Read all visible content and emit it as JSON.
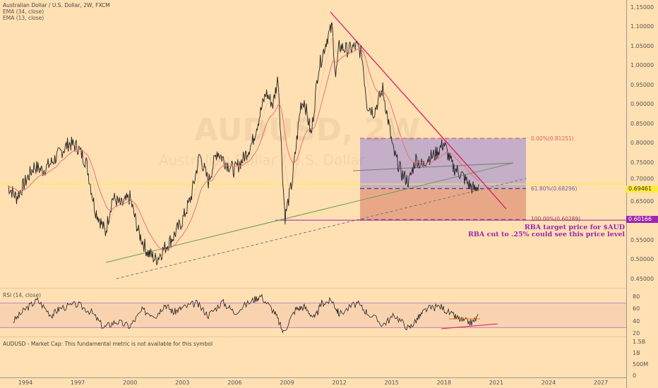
{
  "legend": {
    "title": "Australian Dollar / U.S. Dollar, 2W, FXCM",
    "ema1": "EMA (34, close)",
    "ema2": "EMA (13, close)"
  },
  "watermark": {
    "symbol": "AUDUSD, 2W",
    "name": "Australian Dollar / U.S. Dollar"
  },
  "rsi_label": "RSI (14, close)",
  "marketcap_label": "AUDUSD - Market Cap: This fundamental metric is not available for this symbol",
  "fib": {
    "top": "0.00%(0.81251)",
    "mid": "61.80%(0.68296)",
    "bottom": "100.00%(0.60289)"
  },
  "annotation": {
    "line1": "RBA target price for $AUD",
    "line2": "RBA cut to .25% could see this price level"
  },
  "tags": {
    "current": "0.69461",
    "target": "0.60166"
  },
  "colors": {
    "bg": "#ffe0b2",
    "candles": "#222222",
    "ema": "#e57373",
    "trend": "#d81b60",
    "fib_upper": "#c5aec8",
    "fib_lower": "#e8a888",
    "target": "#9c27b0",
    "current": "#ffeb3b"
  },
  "chart_data": {
    "type": "line",
    "title": "Australian Dollar / U.S. Dollar, 2W, FXCM",
    "x": [
      1993.0,
      1993.5,
      1994.5,
      1995,
      1995.5,
      1996.5,
      1997,
      1997.5,
      1998,
      1998.6,
      1999,
      1999.5,
      2000,
      2000.5,
      2001,
      2001.5,
      2002,
      2002.5,
      2003,
      2003.5,
      2004,
      2004.5,
      2005,
      2005.5,
      2006,
      2006.5,
      2007,
      2007.8,
      2008.2,
      2008.5,
      2008.8,
      2008.9,
      2009.3,
      2009.8,
      2010,
      2010.4,
      2010.8,
      2011,
      2011.3,
      2011.6,
      2011.8,
      2012,
      2012.5,
      2013,
      2013.3,
      2013.6,
      2014,
      2014.5,
      2014.8,
      2015.1,
      2015.6,
      2016,
      2016.4,
      2016.8,
      2017,
      2017.5,
      2018,
      2018.5,
      2019,
      2019.5,
      2019.8,
      2020
    ],
    "y": [
      0.69,
      0.66,
      0.74,
      0.73,
      0.75,
      0.8,
      0.79,
      0.75,
      0.63,
      0.57,
      0.66,
      0.64,
      0.66,
      0.57,
      0.52,
      0.5,
      0.53,
      0.56,
      0.6,
      0.66,
      0.77,
      0.7,
      0.78,
      0.75,
      0.73,
      0.76,
      0.8,
      0.93,
      0.9,
      0.97,
      0.68,
      0.61,
      0.7,
      0.9,
      0.91,
      0.82,
      0.99,
      1.02,
      1.07,
      1.1,
      0.97,
      1.05,
      1.04,
      1.05,
      1.03,
      0.9,
      0.88,
      0.94,
      0.86,
      0.78,
      0.72,
      0.7,
      0.76,
      0.74,
      0.76,
      0.77,
      0.8,
      0.74,
      0.72,
      0.69,
      0.68,
      0.695
    ],
    "ylim": [
      0.45,
      1.15
    ],
    "yticks": [
      "1.15000",
      "1.10000",
      "1.05000",
      "1.00000",
      "0.95000",
      "0.90000",
      "0.85000",
      "0.80000",
      "0.75000",
      "0.70000",
      "0.65000",
      "0.55000",
      "0.50000",
      "0.45000"
    ],
    "ytick_values": [
      1.15,
      1.1,
      1.05,
      1.0,
      0.95,
      0.9,
      0.85,
      0.8,
      0.75,
      0.7,
      0.65,
      0.55,
      0.5,
      0.45
    ],
    "xticks": [
      "1994",
      "1997",
      "2000",
      "2003",
      "2006",
      "2009",
      "2012",
      "2015",
      "2018",
      "2021",
      "2024",
      "2027"
    ],
    "rsi": {
      "x": [
        1993.3,
        1994,
        1994.7,
        1995.5,
        1996,
        1997,
        1997.8,
        1998.5,
        1999.2,
        2000,
        2000.7,
        2001.5,
        2002,
        2002.5,
        2003,
        2003.8,
        2004.5,
        2005.3,
        2006,
        2007,
        2007.5,
        2008.3,
        2008.8,
        2009.5,
        2010,
        2010.6,
        2011,
        2011.6,
        2012,
        2013,
        2013.6,
        2014.5,
        2015.2,
        2016,
        2016.5,
        2017,
        2017.8,
        2018.5,
        2019,
        2019.6,
        2020
      ],
      "y": [
        40,
        60,
        75,
        50,
        62,
        68,
        55,
        30,
        40,
        32,
        58,
        50,
        68,
        55,
        62,
        70,
        50,
        72,
        55,
        74,
        82,
        55,
        22,
        60,
        64,
        45,
        70,
        74,
        52,
        70,
        55,
        35,
        50,
        28,
        45,
        60,
        65,
        50,
        42,
        38,
        48
      ],
      "yticks": [
        "80",
        "60",
        "40",
        "20"
      ],
      "levels": [
        70,
        30
      ]
    },
    "marketcap_yticks": [
      "1.5B",
      "1B",
      "500M",
      "0"
    ]
  }
}
